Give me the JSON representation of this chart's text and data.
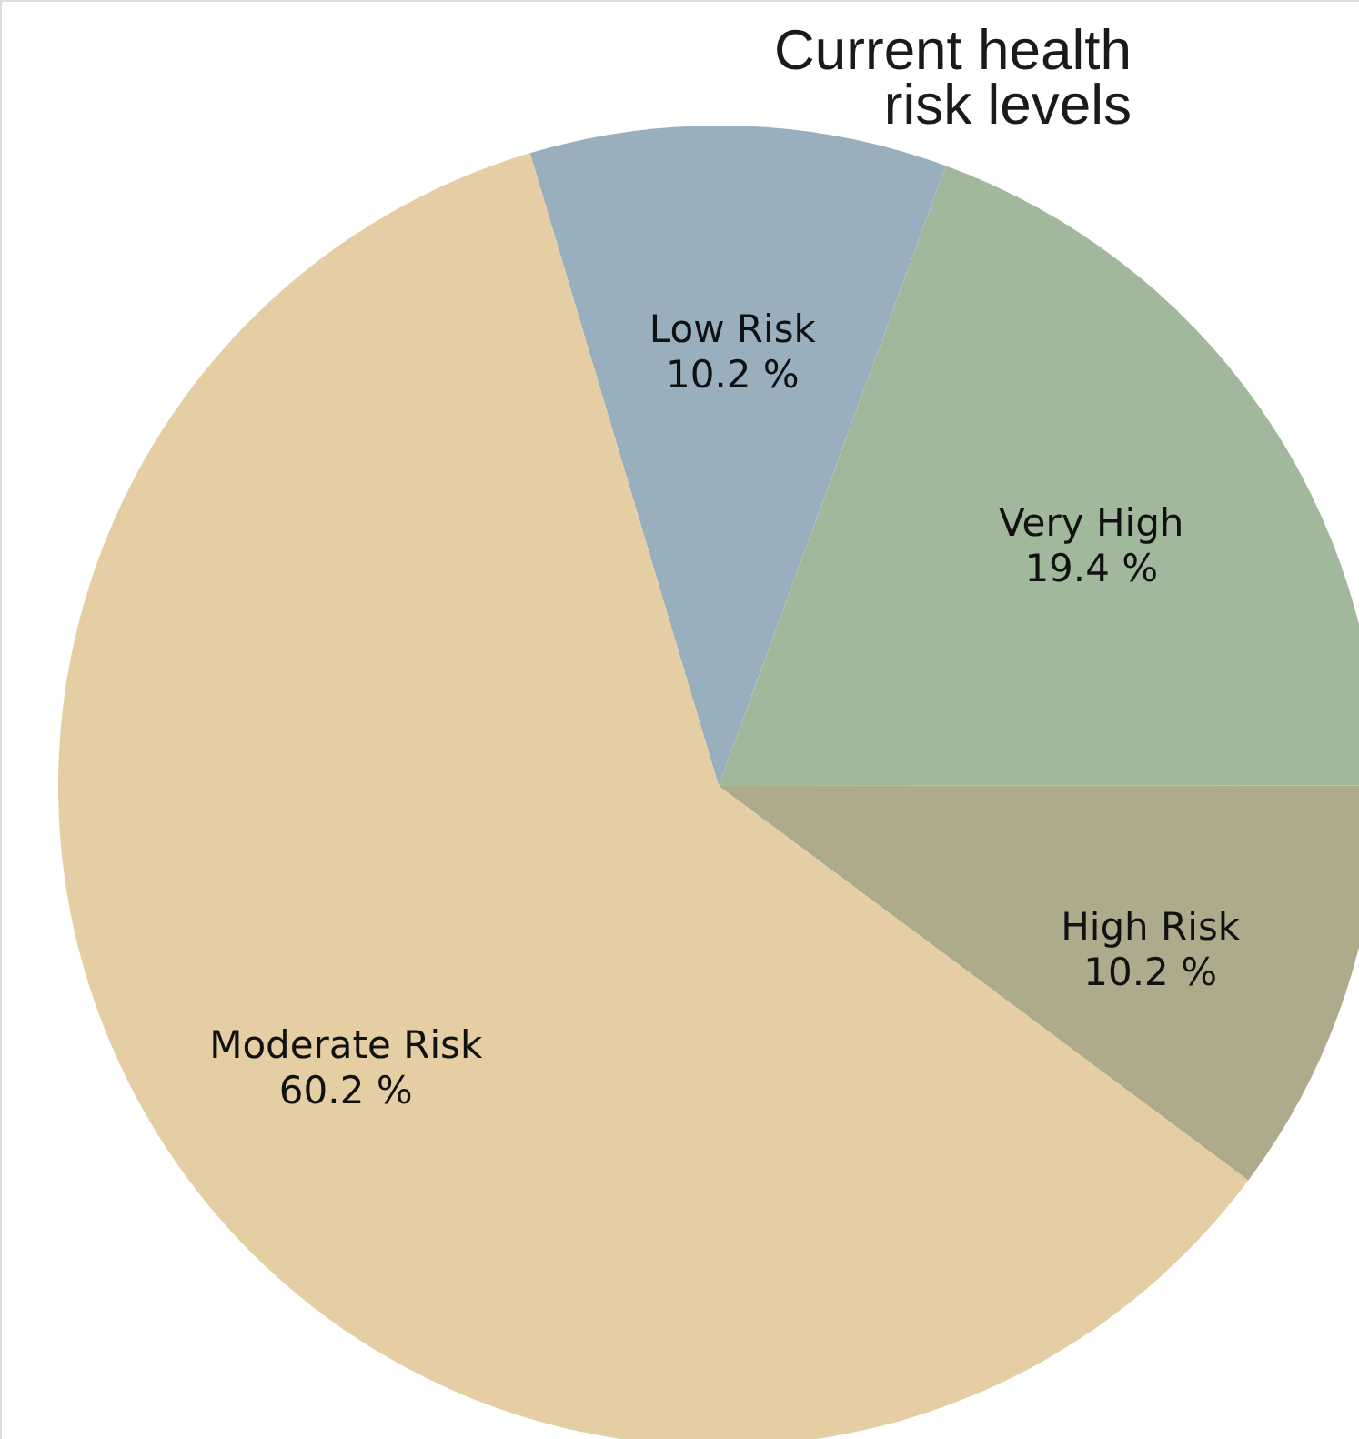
{
  "chart_data": {
    "type": "pie",
    "title": "Current health\nrisk levels",
    "categories": [
      "Low Risk",
      "Very High",
      "High Risk",
      "Moderate Risk"
    ],
    "values": [
      10.2,
      19.4,
      10.2,
      60.2
    ],
    "colors": [
      "#9aafbe",
      "#a2b89c",
      "#aeaa8c",
      "#e5cea3"
    ],
    "value_labels": [
      "10.2 %",
      "19.4 %",
      "10.2 %",
      "60.2 %"
    ]
  }
}
